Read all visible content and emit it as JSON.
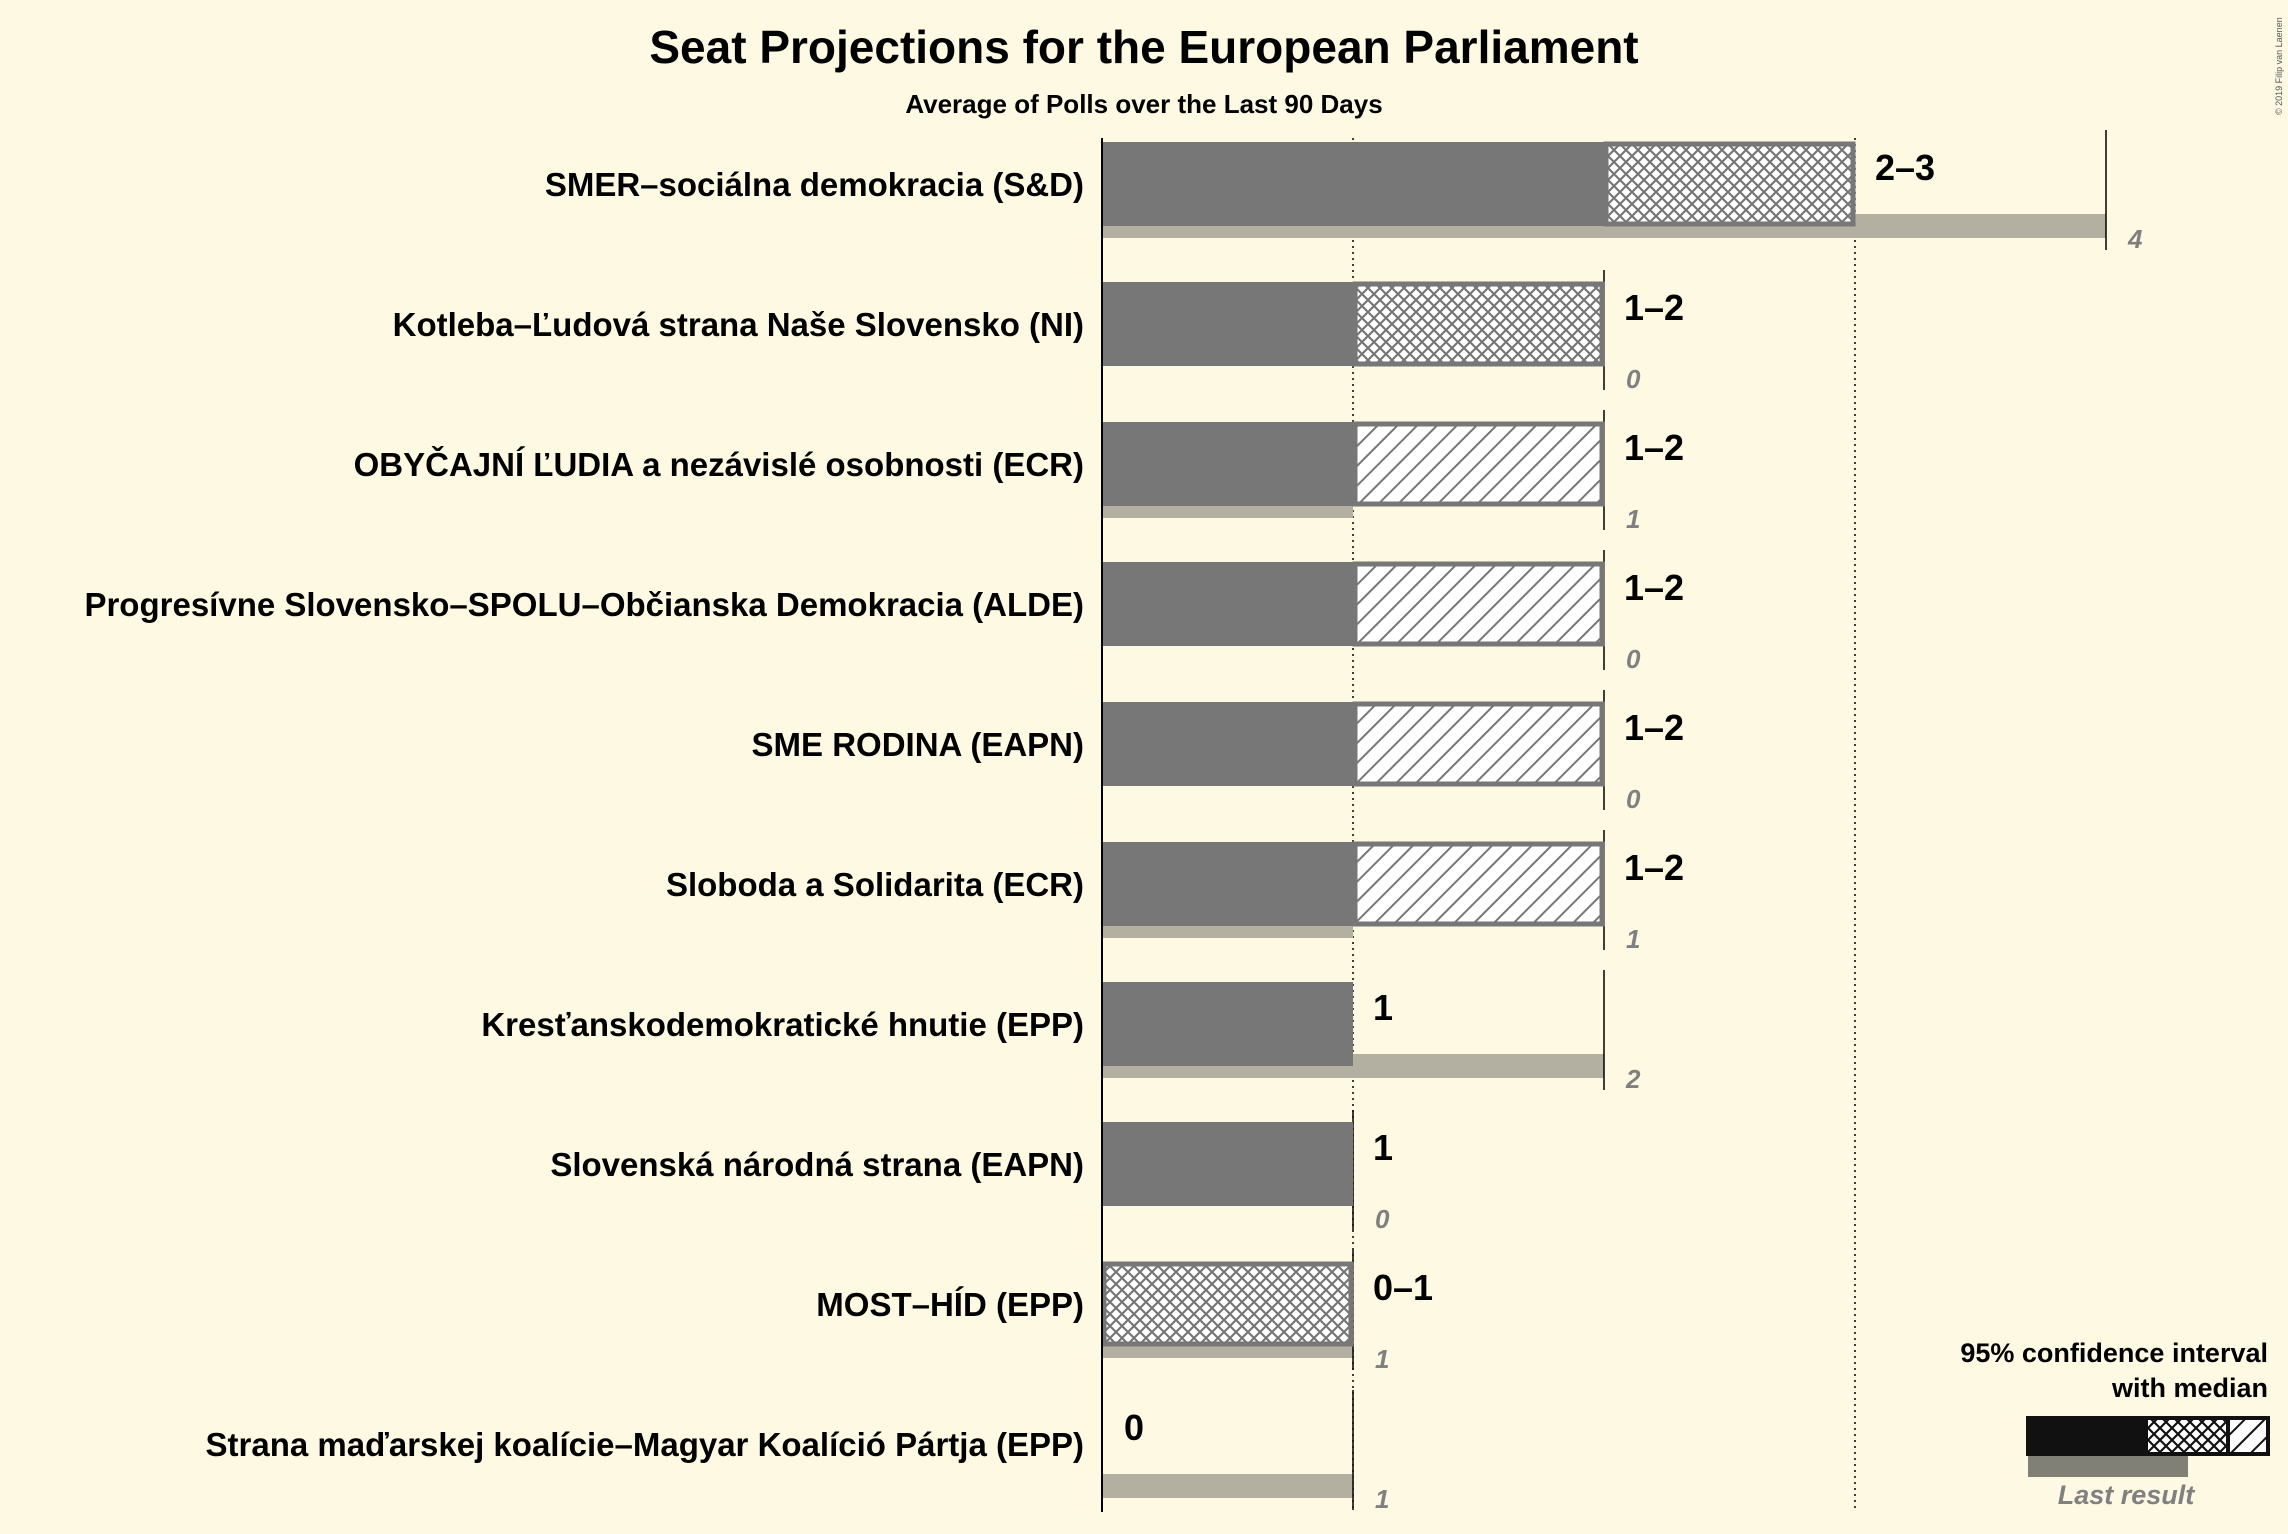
{
  "chart_data": {
    "type": "bar",
    "title": "Seat Projections for the European Parliament",
    "subtitle": "Average of Polls over the Last 90 Days",
    "copyright": "© 2019 Filip van Laenen",
    "xlim": [
      0,
      4
    ],
    "gridlines": [
      1,
      3
    ],
    "parties": [
      {
        "name": "SMER–sociálna demokracia (S&D)",
        "ci_low": 2,
        "median": 2,
        "ci_high": 3,
        "pattern": "cross",
        "range_label": "2–3",
        "last": 4,
        "last_label": "4"
      },
      {
        "name": "Kotleba–Ľudová strana Naše Slovensko (NI)",
        "ci_low": 1,
        "median": 1,
        "ci_high": 2,
        "pattern": "cross",
        "range_label": "1–2",
        "last": 0,
        "last_label": "0"
      },
      {
        "name": "OBYČAJNÍ ĽUDIA a nezávislé osobnosti (ECR)",
        "ci_low": 1,
        "median": 2,
        "ci_high": 2,
        "pattern": "hatch",
        "range_label": "1–2",
        "last": 1,
        "last_label": "1"
      },
      {
        "name": "Progresívne Slovensko–SPOLU–Občianska Demokracia (ALDE)",
        "ci_low": 1,
        "median": 2,
        "ci_high": 2,
        "pattern": "hatch",
        "range_label": "1–2",
        "last": 0,
        "last_label": "0"
      },
      {
        "name": "SME RODINA (EAPN)",
        "ci_low": 1,
        "median": 2,
        "ci_high": 2,
        "pattern": "hatch",
        "range_label": "1–2",
        "last": 0,
        "last_label": "0"
      },
      {
        "name": "Sloboda a Solidarita (ECR)",
        "ci_low": 1,
        "median": 2,
        "ci_high": 2,
        "pattern": "hatch",
        "range_label": "1–2",
        "last": 1,
        "last_label": "1"
      },
      {
        "name": "Kresťanskodemokratické hnutie (EPP)",
        "ci_low": 1,
        "median": 1,
        "ci_high": 1,
        "pattern": "none",
        "range_label": "1",
        "last": 2,
        "last_label": "2"
      },
      {
        "name": "Slovenská národná strana (EAPN)",
        "ci_low": 1,
        "median": 1,
        "ci_high": 1,
        "pattern": "none",
        "range_label": "1",
        "last": 0,
        "last_label": "0"
      },
      {
        "name": "MOST–HÍD (EPP)",
        "ci_low": 0,
        "median": 0,
        "ci_high": 1,
        "pattern": "cross",
        "range_label": "0–1",
        "last": 1,
        "last_label": "1"
      },
      {
        "name": "Strana maďarskej koalície–Magyar Koalíció Pártja (EPP)",
        "ci_low": 0,
        "median": 0,
        "ci_high": 0,
        "pattern": "none",
        "range_label": "0",
        "last": 1,
        "last_label": "1"
      }
    ],
    "legend": {
      "line1": "95% confidence interval",
      "line2": "with median",
      "last_result": "Last result",
      "placement": "bottom-right"
    },
    "colors": {
      "background": "#FDF9E2",
      "bar": "#777777",
      "pattern_fill": "#FFFFFF",
      "last_result": "#B3B0A2",
      "legend_bar": "#111111",
      "legend_last": "#808077"
    }
  }
}
